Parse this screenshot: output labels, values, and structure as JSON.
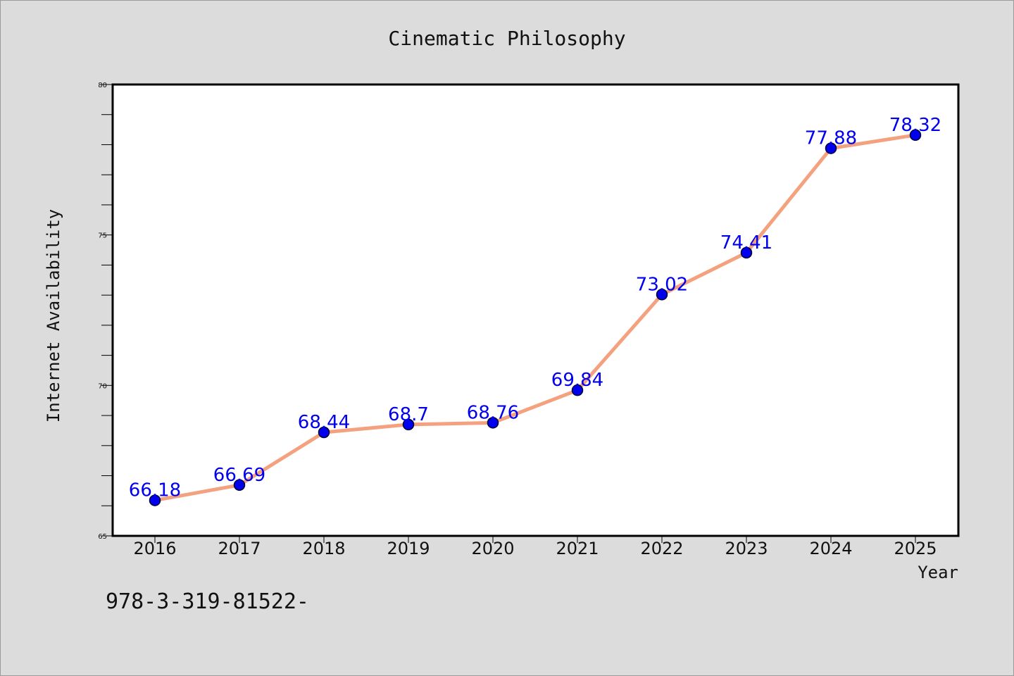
{
  "footer_text": "978-3-319-81522-",
  "chart_data": {
    "type": "line",
    "title": "Cinematic Philosophy",
    "xlabel": "Year",
    "ylabel": "Internet Availability",
    "categories": [
      "2016",
      "2017",
      "2018",
      "2019",
      "2020",
      "2021",
      "2022",
      "2023",
      "2024",
      "2025"
    ],
    "series": [
      {
        "values": [
          66.18,
          66.69,
          68.44,
          68.7,
          68.76,
          69.84,
          73.02,
          74.41,
          77.88,
          78.32
        ],
        "labels": [
          "66.18",
          "66.69",
          "68.44",
          "68.7",
          "68.76",
          "69.84",
          "73.02",
          "74.41",
          "77.88",
          "78.32"
        ]
      }
    ],
    "ylim": [
      65,
      80
    ],
    "yticks": [
      "65",
      "70",
      "75",
      "80"
    ],
    "grid": false,
    "colors": {
      "line": "#f4a17f",
      "marker": "#0000ee",
      "data_label": "#0000ee",
      "background": "#dcdcdc"
    }
  }
}
